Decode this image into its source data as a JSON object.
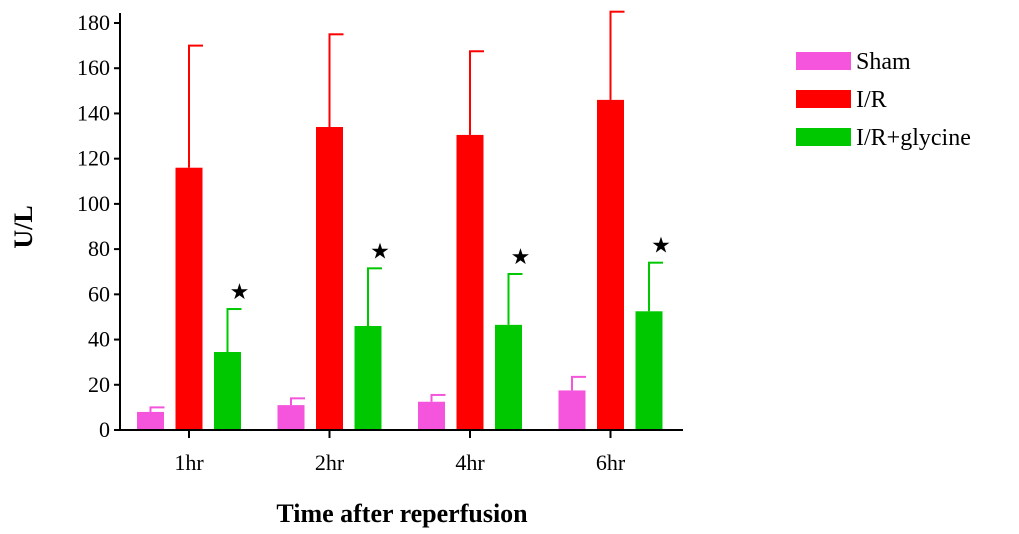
{
  "chart_data": {
    "type": "bar",
    "title": "",
    "xlabel": "Time after reperfusion",
    "ylabel": "U/L",
    "categories": [
      "1hr",
      "2hr",
      "4hr",
      "6hr"
    ],
    "ylim": [
      0,
      180
    ],
    "yticks": [
      0,
      20,
      40,
      60,
      80,
      100,
      120,
      140,
      160,
      180
    ],
    "grid": false,
    "legend_position": "right",
    "series": [
      {
        "name": "Sham",
        "color": "#f455dc",
        "values": [
          8,
          11,
          12.5,
          17.5
        ],
        "error": [
          2,
          3,
          3,
          6
        ]
      },
      {
        "name": "I/R",
        "color": "#ff0000",
        "values": [
          116,
          134,
          130.5,
          146
        ],
        "error": [
          54,
          41,
          37,
          39
        ]
      },
      {
        "name": "I/R+glycine",
        "color": "#00c800",
        "values": [
          34.5,
          46,
          46.5,
          52.5
        ],
        "error": [
          19,
          25.5,
          22.5,
          21.5
        ]
      }
    ],
    "annotations": [
      {
        "series": "I/R+glycine",
        "category": "1hr",
        "text": "★"
      },
      {
        "series": "I/R+glycine",
        "category": "2hr",
        "text": "★"
      },
      {
        "series": "I/R+glycine",
        "category": "4hr",
        "text": "★"
      },
      {
        "series": "I/R+glycine",
        "category": "6hr",
        "text": "★"
      }
    ]
  }
}
